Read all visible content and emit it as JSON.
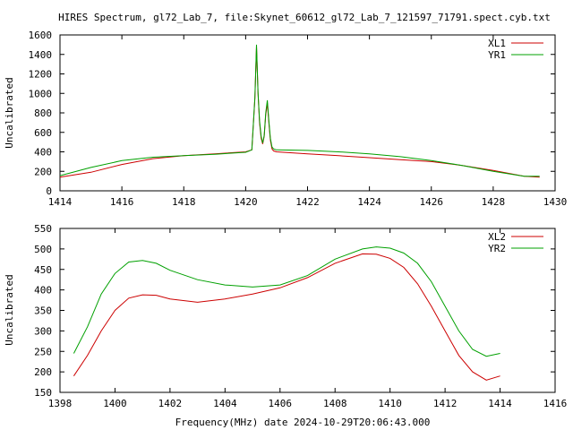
{
  "title": "HIRES Spectrum, gl72_Lab_7, file:Skynet_60612_gl72_Lab_7_121597_71791.spect.cyb.txt",
  "xlabel": "Frequency(MHz) date 2024-10-29T20:06:43.000",
  "chart_data": [
    {
      "type": "line",
      "ylabel": "Uncalibrated",
      "xlim": [
        1414,
        1430
      ],
      "ylim": [
        0,
        1600
      ],
      "xticks": [
        "1414",
        "1416",
        "1418",
        "1420",
        "1422",
        "1424",
        "1426",
        "1428",
        "1430"
      ],
      "yticks": [
        "0",
        "200",
        "400",
        "600",
        "800",
        "1000",
        "1200",
        "1400",
        "1600"
      ],
      "legend_position": "top-right",
      "series": [
        {
          "name": "XL1",
          "color": "#cc0000",
          "x": [
            1414,
            1415,
            1416,
            1417,
            1418,
            1419,
            1420,
            1420.2,
            1420.3,
            1420.35,
            1420.4,
            1420.45,
            1420.5,
            1420.55,
            1420.6,
            1420.65,
            1420.7,
            1420.75,
            1420.8,
            1420.85,
            1420.9,
            1421,
            1422,
            1423,
            1424,
            1425,
            1426,
            1427,
            1428,
            1429,
            1429.5
          ],
          "y": [
            140,
            190,
            270,
            330,
            360,
            380,
            400,
            420,
            950,
            1480,
            1000,
            700,
            540,
            480,
            560,
            780,
            900,
            700,
            520,
            430,
            410,
            400,
            380,
            360,
            340,
            320,
            300,
            260,
            210,
            150,
            140
          ]
        },
        {
          "name": "YR1",
          "color": "#00a000",
          "x": [
            1414,
            1415,
            1416,
            1417,
            1418,
            1419,
            1420,
            1420.2,
            1420.3,
            1420.35,
            1420.4,
            1420.45,
            1420.5,
            1420.55,
            1420.6,
            1420.65,
            1420.7,
            1420.75,
            1420.8,
            1420.85,
            1420.9,
            1421,
            1422,
            1423,
            1424,
            1425,
            1426,
            1427,
            1428,
            1429,
            1429.5
          ],
          "y": [
            155,
            240,
            310,
            345,
            360,
            375,
            395,
            420,
            960,
            1500,
            1010,
            720,
            560,
            490,
            570,
            800,
            930,
            720,
            540,
            450,
            430,
            420,
            415,
            400,
            380,
            350,
            310,
            260,
            200,
            150,
            150
          ]
        }
      ]
    },
    {
      "type": "line",
      "ylabel": "Uncalibrated",
      "xlim": [
        1398,
        1416
      ],
      "ylim": [
        150,
        550
      ],
      "xticks": [
        "1398",
        "1400",
        "1402",
        "1404",
        "1406",
        "1408",
        "1410",
        "1412",
        "1414",
        "1416"
      ],
      "yticks": [
        "150",
        "200",
        "250",
        "300",
        "350",
        "400",
        "450",
        "500",
        "550"
      ],
      "legend_position": "top-right",
      "series": [
        {
          "name": "XL2",
          "color": "#cc0000",
          "x": [
            1398.5,
            1399,
            1399.5,
            1400,
            1400.5,
            1401,
            1401.5,
            1402,
            1403,
            1404,
            1405,
            1406,
            1407,
            1408,
            1409,
            1409.5,
            1410,
            1410.5,
            1411,
            1411.5,
            1412,
            1412.5,
            1413,
            1413.5,
            1414
          ],
          "y": [
            190,
            240,
            300,
            350,
            380,
            388,
            387,
            378,
            370,
            378,
            390,
            405,
            430,
            465,
            488,
            487,
            477,
            455,
            415,
            360,
            300,
            240,
            200,
            180,
            190
          ]
        },
        {
          "name": "YR2",
          "color": "#00a000",
          "x": [
            1398.5,
            1399,
            1399.5,
            1400,
            1400.5,
            1401,
            1401.5,
            1402,
            1403,
            1404,
            1405,
            1406,
            1407,
            1408,
            1409,
            1409.5,
            1410,
            1410.5,
            1411,
            1411.5,
            1412,
            1412.5,
            1413,
            1413.5,
            1414
          ],
          "y": [
            245,
            310,
            390,
            440,
            468,
            472,
            465,
            448,
            425,
            412,
            407,
            412,
            435,
            475,
            500,
            505,
            502,
            490,
            465,
            420,
            360,
            300,
            255,
            238,
            245
          ]
        }
      ]
    }
  ]
}
